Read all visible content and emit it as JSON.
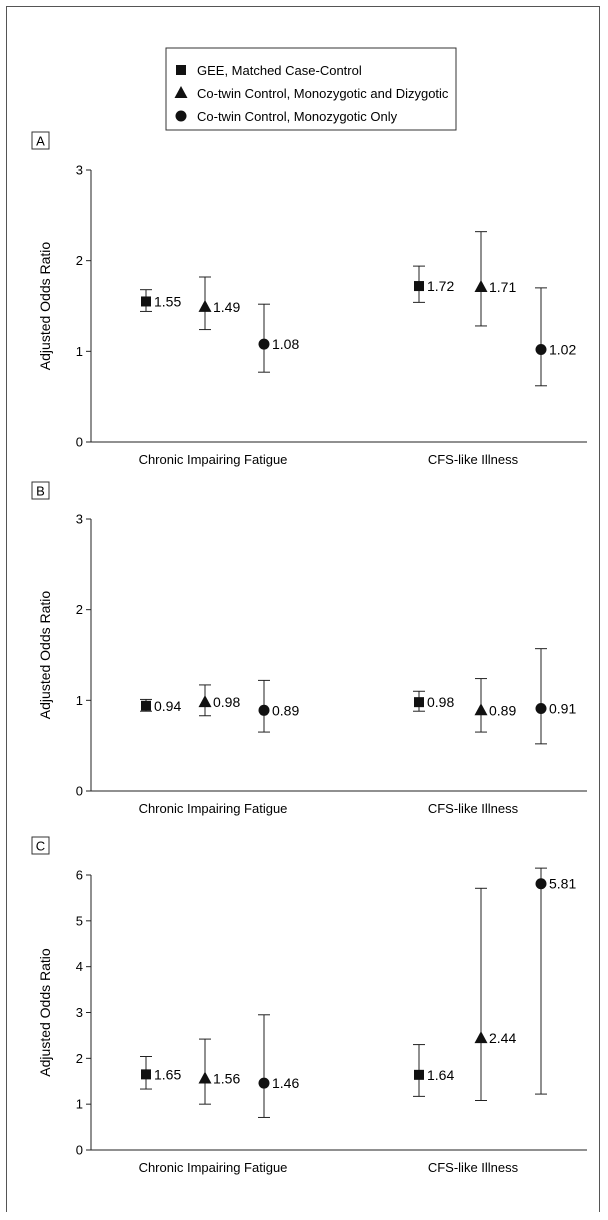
{
  "legend": {
    "items": [
      {
        "label": "GEE, Matched Case-Control",
        "marker": "square"
      },
      {
        "label": "Co-twin Control, Monozygotic and Dizygotic",
        "marker": "triangle"
      },
      {
        "label": "Co-twin Control, Monozygotic Only",
        "marker": "circle"
      }
    ]
  },
  "chart_data": [
    {
      "type": "scatter",
      "panel": "A",
      "ylabel": "Adjusted Odds Ratio",
      "ylim": [
        0,
        3
      ],
      "yticks": [
        "0",
        "1",
        "2",
        "3"
      ],
      "categories": [
        "Chronic Impairing Fatigue",
        "CFS-like Illness"
      ],
      "series": [
        {
          "name": "GEE, Matched Case-Control",
          "marker": "square",
          "values": [
            1.55,
            1.72
          ],
          "labels": [
            "1.55",
            "1.72"
          ],
          "ci_low": [
            1.44,
            1.54
          ],
          "ci_high": [
            1.68,
            1.94
          ]
        },
        {
          "name": "Co-twin Control, Monozygotic and Dizygotic",
          "marker": "triangle",
          "values": [
            1.49,
            1.71
          ],
          "labels": [
            "1.49",
            "1.71"
          ],
          "ci_low": [
            1.24,
            1.28
          ],
          "ci_high": [
            1.82,
            2.32
          ]
        },
        {
          "name": "Co-twin Control, Monozygotic Only",
          "marker": "circle",
          "values": [
            1.08,
            1.02
          ],
          "labels": [
            "1.08",
            "1.02"
          ],
          "ci_low": [
            0.77,
            0.62
          ],
          "ci_high": [
            1.52,
            1.7
          ]
        }
      ]
    },
    {
      "type": "scatter",
      "panel": "B",
      "ylabel": "Adjusted Odds Ratio",
      "ylim": [
        0,
        3
      ],
      "yticks": [
        "0",
        "1",
        "2",
        "3"
      ],
      "categories": [
        "Chronic Impairing Fatigue",
        "CFS-like Illness"
      ],
      "series": [
        {
          "name": "GEE, Matched Case-Control",
          "marker": "square",
          "values": [
            0.94,
            0.98
          ],
          "labels": [
            "0.94",
            "0.98"
          ],
          "ci_low": [
            0.88,
            0.88
          ],
          "ci_high": [
            1.01,
            1.1
          ]
        },
        {
          "name": "Co-twin Control, Monozygotic and Dizygotic",
          "marker": "triangle",
          "values": [
            0.98,
            0.89
          ],
          "labels": [
            "0.98",
            "0.89"
          ],
          "ci_low": [
            0.83,
            0.65
          ],
          "ci_high": [
            1.17,
            1.24
          ]
        },
        {
          "name": "Co-twin Control, Monozygotic Only",
          "marker": "circle",
          "values": [
            0.89,
            0.91
          ],
          "labels": [
            "0.89",
            "0.91"
          ],
          "ci_low": [
            0.65,
            0.52
          ],
          "ci_high": [
            1.22,
            1.57
          ]
        }
      ]
    },
    {
      "type": "scatter",
      "panel": "C",
      "ylabel": "Adjusted Odds Ratio",
      "ylim": [
        0,
        6
      ],
      "yticks": [
        "0",
        "1",
        "2",
        "3",
        "4",
        "5",
        "6"
      ],
      "categories": [
        "Chronic Impairing Fatigue",
        "CFS-like Illness"
      ],
      "series": [
        {
          "name": "GEE, Matched Case-Control",
          "marker": "square",
          "values": [
            1.65,
            1.64
          ],
          "labels": [
            "1.65",
            "1.64"
          ],
          "ci_low": [
            1.33,
            1.17
          ],
          "ci_high": [
            2.04,
            2.3
          ]
        },
        {
          "name": "Co-twin Control, Monozygotic and Dizygotic",
          "marker": "triangle",
          "values": [
            1.56,
            2.44
          ],
          "labels": [
            "1.56",
            "2.44"
          ],
          "ci_low": [
            1.0,
            1.08
          ],
          "ci_high": [
            2.42,
            5.71
          ]
        },
        {
          "name": "Co-twin Control, Monozygotic Only",
          "marker": "circle",
          "values": [
            1.46,
            5.81
          ],
          "labels": [
            "1.46",
            "5.81"
          ],
          "ci_low": [
            0.71,
            1.22
          ],
          "ci_high": [
            2.95,
            6.15
          ]
        }
      ]
    }
  ]
}
